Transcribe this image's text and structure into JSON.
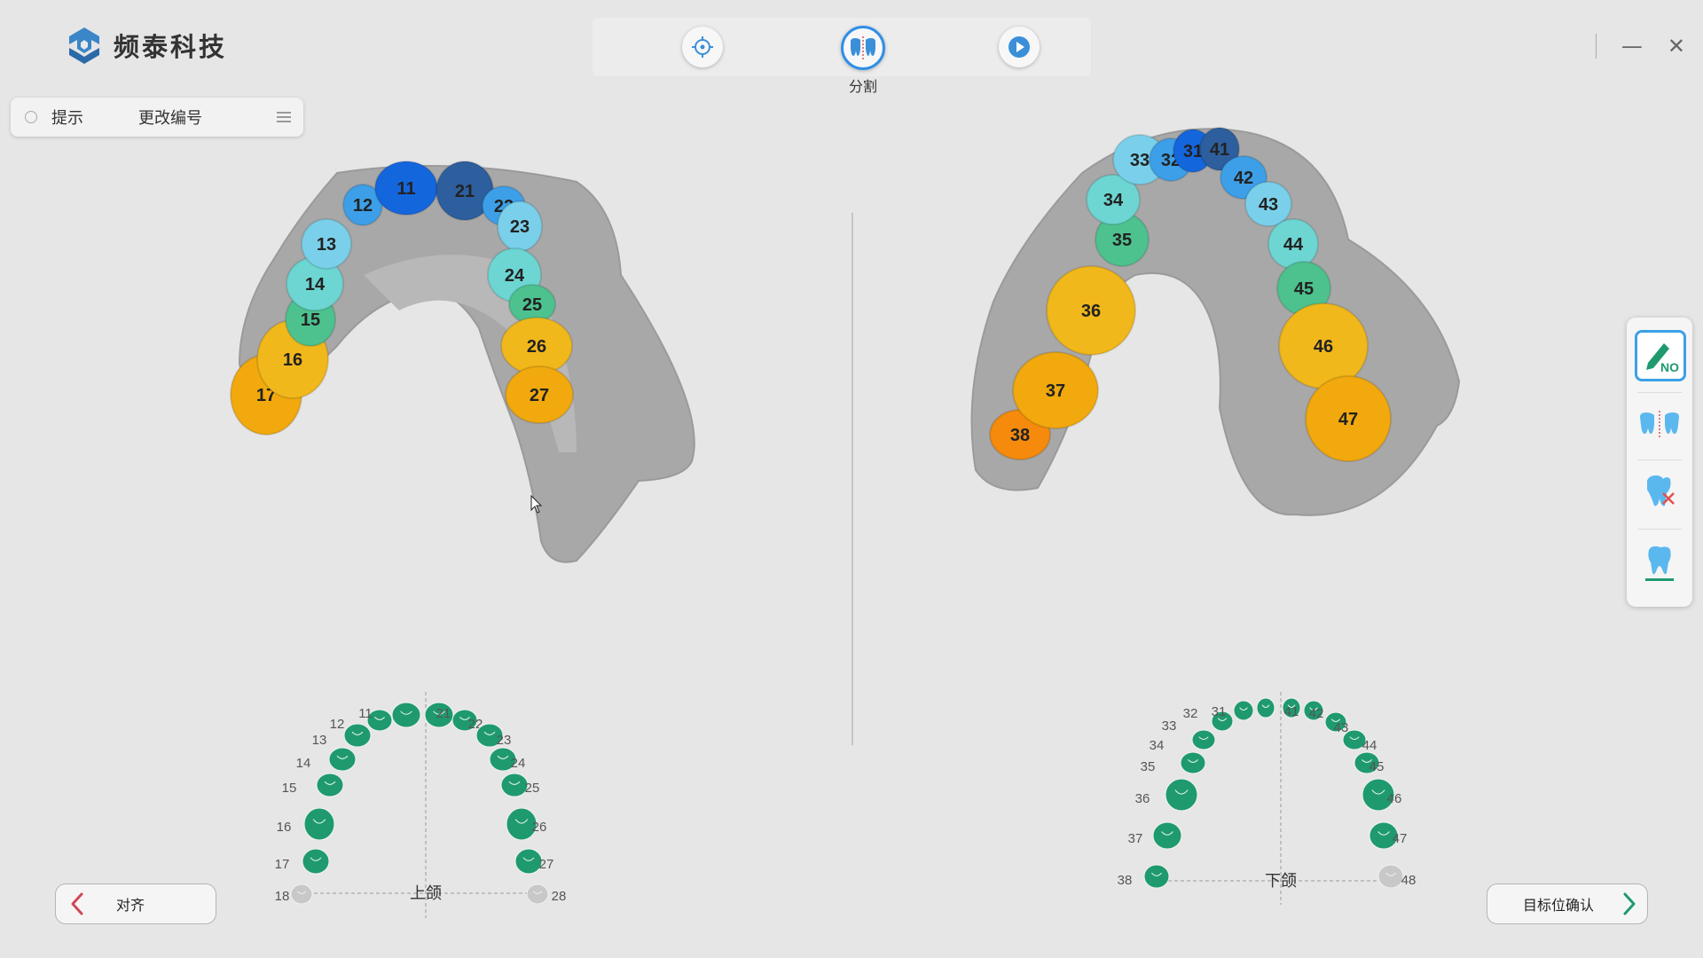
{
  "app": {
    "brand_name": "频泰科技"
  },
  "toolbar": {
    "buttons": [
      {
        "icon": "crosshair-icon",
        "active": false
      },
      {
        "icon": "tooth-split-icon",
        "active": true
      },
      {
        "icon": "play-icon",
        "active": false
      }
    ],
    "active_label": "分割"
  },
  "hint_bar": {
    "hint_label": "提示",
    "action_label": "更改编号"
  },
  "upper_scan": {
    "teeth": [
      {
        "num": "17",
        "color": "#f1a90e"
      },
      {
        "num": "16",
        "color": "#f1b81c"
      },
      {
        "num": "15",
        "color": "#4dc28f"
      },
      {
        "num": "14",
        "color": "#6dd6d2"
      },
      {
        "num": "13",
        "color": "#7ad0ea"
      },
      {
        "num": "12",
        "color": "#3d9fe8"
      },
      {
        "num": "11",
        "color": "#1466dd"
      },
      {
        "num": "21",
        "color": "#2d5f9e"
      },
      {
        "num": "22",
        "color": "#3d9fe8"
      },
      {
        "num": "23",
        "color": "#7ad0ea"
      },
      {
        "num": "24",
        "color": "#6dd6d2"
      },
      {
        "num": "25",
        "color": "#4dc28f"
      },
      {
        "num": "26",
        "color": "#f1b81c"
      },
      {
        "num": "27",
        "color": "#f1a90e"
      }
    ]
  },
  "lower_scan": {
    "teeth": [
      {
        "num": "38",
        "color": "#f58a0c"
      },
      {
        "num": "37",
        "color": "#f1a90e"
      },
      {
        "num": "36",
        "color": "#f1b81c"
      },
      {
        "num": "35",
        "color": "#4dc28f"
      },
      {
        "num": "34",
        "color": "#6dd6d2"
      },
      {
        "num": "33",
        "color": "#7ad0ea"
      },
      {
        "num": "32",
        "color": "#3d9fe8"
      },
      {
        "num": "31",
        "color": "#1466dd"
      },
      {
        "num": "41",
        "color": "#2d5f9e"
      },
      {
        "num": "42",
        "color": "#3d9fe8"
      },
      {
        "num": "43",
        "color": "#7ad0ea"
      },
      {
        "num": "44",
        "color": "#6dd6d2"
      },
      {
        "num": "45",
        "color": "#4dc28f"
      },
      {
        "num": "46",
        "color": "#f1b81c"
      },
      {
        "num": "47",
        "color": "#f1a90e"
      }
    ]
  },
  "upper_chart": {
    "jaw_label": "上颌",
    "teeth": [
      {
        "num": "18",
        "present": false
      },
      {
        "num": "17",
        "present": true
      },
      {
        "num": "16",
        "present": true
      },
      {
        "num": "15",
        "present": true
      },
      {
        "num": "14",
        "present": true
      },
      {
        "num": "13",
        "present": true
      },
      {
        "num": "12",
        "present": true
      },
      {
        "num": "11",
        "present": true
      },
      {
        "num": "21",
        "present": true
      },
      {
        "num": "22",
        "present": true
      },
      {
        "num": "23",
        "present": true
      },
      {
        "num": "24",
        "present": true
      },
      {
        "num": "25",
        "present": true
      },
      {
        "num": "26",
        "present": true
      },
      {
        "num": "27",
        "present": true
      },
      {
        "num": "28",
        "present": false
      }
    ]
  },
  "lower_chart": {
    "jaw_label": "下颌",
    "teeth": [
      {
        "num": "38",
        "present": true
      },
      {
        "num": "37",
        "present": true
      },
      {
        "num": "36",
        "present": true
      },
      {
        "num": "35",
        "present": true
      },
      {
        "num": "34",
        "present": true
      },
      {
        "num": "33",
        "present": true
      },
      {
        "num": "32",
        "present": true
      },
      {
        "num": "31",
        "present": true
      },
      {
        "num": "41",
        "present": true
      },
      {
        "num": "42",
        "present": true
      },
      {
        "num": "43",
        "present": true
      },
      {
        "num": "44",
        "present": true
      },
      {
        "num": "45",
        "present": true
      },
      {
        "num": "46",
        "present": true
      },
      {
        "num": "47",
        "present": true
      },
      {
        "num": "48",
        "present": false
      }
    ]
  },
  "side_panel": {
    "tools": [
      {
        "icon": "tooth-number-edit-icon",
        "label": "NO.",
        "active": true
      },
      {
        "icon": "tooth-split-icon",
        "active": false
      },
      {
        "icon": "tooth-remove-icon",
        "active": false
      },
      {
        "icon": "tooth-base-icon",
        "active": false
      }
    ]
  },
  "nav": {
    "back_label": "对齐",
    "next_label": "目标位确认"
  },
  "colors": {
    "chart_tooth": "#1e9a6e",
    "missing_tooth": "#c8c8c8",
    "accent": "#2f8fe8"
  }
}
